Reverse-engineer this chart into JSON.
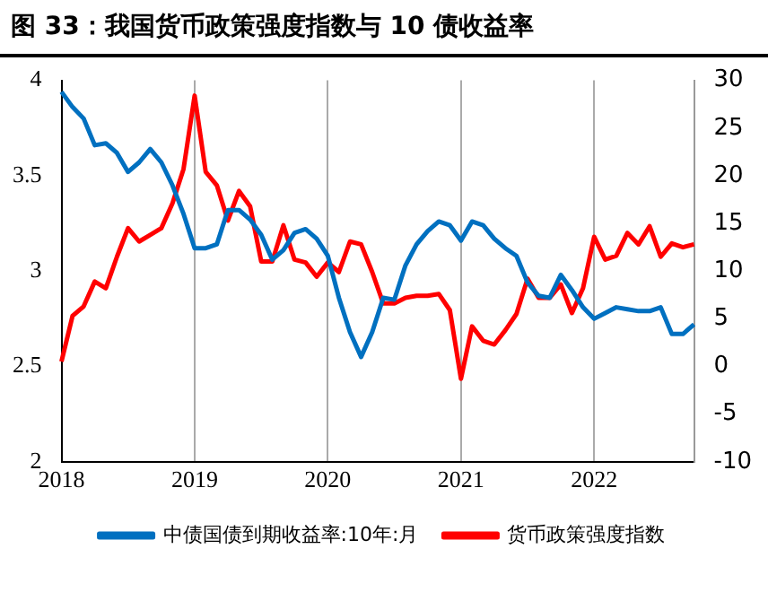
{
  "chart_data": {
    "type": "line",
    "title": "图 33：我国货币政策强度指数与 10 债收益率",
    "categories": [
      "2018",
      null,
      null,
      null,
      null,
      null,
      null,
      null,
      null,
      null,
      null,
      null,
      "2019",
      null,
      null,
      null,
      null,
      null,
      null,
      null,
      null,
      null,
      null,
      null,
      "2020",
      null,
      null,
      null,
      null,
      null,
      null,
      null,
      null,
      null,
      null,
      null,
      "2021",
      null,
      null,
      null,
      null,
      null,
      null,
      null,
      null,
      null,
      null,
      null,
      "2022",
      null,
      null,
      null,
      null,
      null,
      null,
      null,
      null,
      null
    ],
    "series": [
      {
        "name": "中债国债到期收益率:10年:月",
        "color": "#0070c0",
        "values": [
          3.94,
          3.86,
          3.8,
          3.66,
          3.67,
          3.62,
          3.52,
          3.57,
          3.64,
          3.57,
          3.45,
          3.3,
          3.12,
          3.12,
          3.14,
          3.32,
          3.32,
          3.27,
          3.19,
          3.06,
          3.11,
          3.2,
          3.22,
          3.17,
          3.08,
          2.86,
          2.68,
          2.55,
          2.68,
          2.86,
          2.85,
          3.03,
          3.14,
          3.21,
          3.26,
          3.24,
          3.16,
          3.26,
          3.24,
          3.17,
          3.12,
          3.08,
          2.94,
          2.87,
          2.86,
          2.98,
          2.9,
          2.81,
          2.75,
          2.78,
          2.81,
          2.8,
          2.79,
          2.79,
          2.81,
          2.67,
          2.67,
          2.72
        ]
      },
      {
        "name": "货币政策强度指数",
        "color": "#ff0000",
        "axis": "y2",
        "values": [
          0.5,
          5.3,
          6.3,
          8.9,
          8.2,
          11.5,
          14.5,
          13.1,
          13.8,
          14.5,
          17.1,
          20.7,
          28.4,
          20.4,
          19,
          15.3,
          18.4,
          16.8,
          11,
          11,
          14.8,
          11.2,
          10.9,
          9.4,
          10.9,
          9.9,
          13.1,
          12.8,
          9.9,
          6.6,
          6.6,
          7.2,
          7.4,
          7.4,
          7.6,
          5.9,
          -1.3,
          4.2,
          2.7,
          2.3,
          3.8,
          5.5,
          9.2,
          7.2,
          7.2,
          8.6,
          5.6,
          8.2,
          13.6,
          11.2,
          11.6,
          14,
          12.8,
          14.7,
          11.5,
          12.9,
          12.5,
          12.8
        ]
      }
    ],
    "ylim": [
      2,
      4
    ],
    "yticks": [
      2,
      2.5,
      3,
      3.5,
      4
    ],
    "y2lim": [
      -10,
      30
    ],
    "y2ticks": [
      -10,
      -5,
      0,
      5,
      10,
      15,
      20,
      25,
      30
    ],
    "grid": "x",
    "legend": "bottom",
    "marker": "none",
    "line_style": "solid"
  }
}
